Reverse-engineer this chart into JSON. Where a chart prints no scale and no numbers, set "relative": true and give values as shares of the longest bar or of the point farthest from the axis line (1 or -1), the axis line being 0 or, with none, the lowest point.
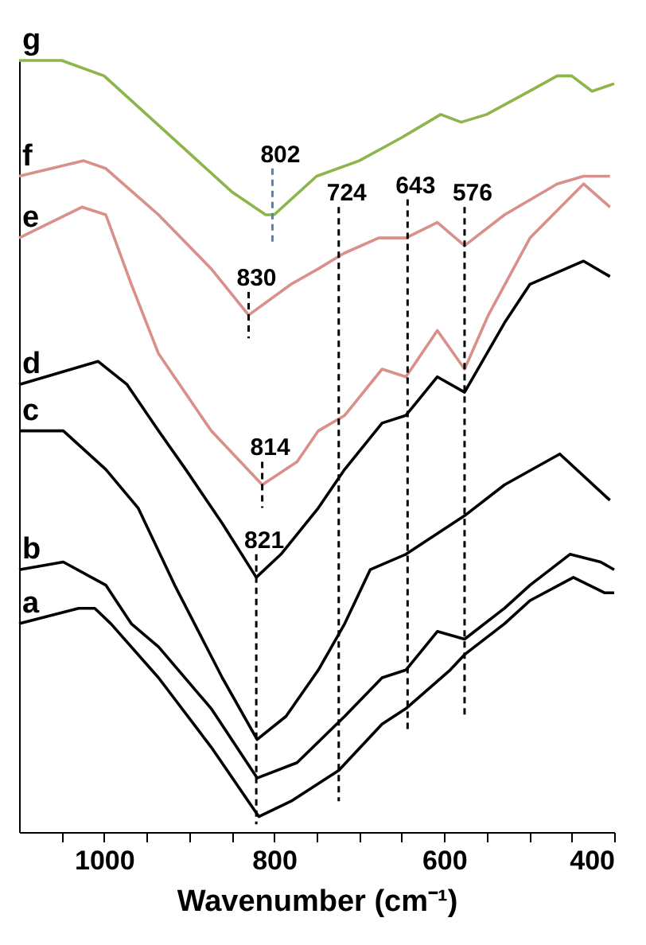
{
  "chart_data": {
    "type": "line",
    "relative": true,
    "xlabel": "Wavenumber (cm⁻¹)",
    "xlim": [
      1100,
      400
    ],
    "xticks": [
      {
        "value": 1050,
        "label": null
      },
      1000,
      {
        "value": 950,
        "label": null
      },
      {
        "value": 900,
        "label": null
      },
      {
        "value": 850,
        "label": null
      },
      800,
      {
        "value": 750,
        "label": null
      },
      {
        "value": 700,
        "label": null
      },
      {
        "value": 650,
        "label": null
      },
      600,
      {
        "value": 550,
        "label": null
      },
      {
        "value": 500,
        "label": null
      },
      {
        "value": 450,
        "label": null
      },
      400
    ],
    "grid": false,
    "line_style": "solid",
    "series": [
      {
        "name": "g",
        "color": "#8db54b",
        "x": [
          1100,
          1050,
          1000,
          950,
          900,
          850,
          810,
          800,
          750,
          700,
          650,
          604,
          580,
          550,
          500,
          467,
          450,
          426,
          400
        ],
        "values": [
          1.0,
          1.0,
          0.98,
          0.93,
          0.88,
          0.83,
          0.8,
          0.8,
          0.85,
          0.87,
          0.9,
          0.93,
          0.92,
          0.93,
          0.96,
          0.98,
          0.98,
          0.96,
          0.97
        ]
      },
      {
        "name": "f",
        "color": "#d98f8a",
        "x": [
          1100,
          1024,
          998,
          936,
          874,
          830,
          780,
          748,
          718,
          677,
          645,
          608,
          576,
          529,
          467,
          436,
          405
        ],
        "values": [
          0.85,
          0.87,
          0.86,
          0.8,
          0.73,
          0.67,
          0.71,
          0.73,
          0.75,
          0.77,
          0.77,
          0.79,
          0.76,
          0.8,
          0.84,
          0.85,
          0.85
        ]
      },
      {
        "name": "e",
        "color": "#d98f8a",
        "x": [
          1100,
          1026,
          998,
          968,
          936,
          874,
          814,
          773,
          748,
          717,
          673,
          645,
          608,
          576,
          548,
          499,
          436,
          405
        ],
        "values": [
          0.77,
          0.81,
          0.8,
          0.71,
          0.62,
          0.52,
          0.45,
          0.48,
          0.52,
          0.54,
          0.6,
          0.59,
          0.65,
          0.6,
          0.67,
          0.77,
          0.84,
          0.81
        ]
      },
      {
        "name": "d",
        "color": "#000000",
        "x": [
          1100,
          1007,
          973,
          936,
          904,
          861,
          821,
          792,
          748,
          717,
          673,
          645,
          608,
          576,
          529,
          499,
          436,
          405
        ],
        "values": [
          0.58,
          0.61,
          0.58,
          0.52,
          0.47,
          0.4,
          0.33,
          0.36,
          0.42,
          0.47,
          0.53,
          0.54,
          0.59,
          0.57,
          0.66,
          0.71,
          0.74,
          0.72
        ]
      },
      {
        "name": "c",
        "color": "#000000",
        "x": [
          1100,
          1048,
          998,
          960,
          917,
          861,
          820,
          786,
          748,
          717,
          687,
          645,
          576,
          529,
          464,
          405
        ],
        "values": [
          0.52,
          0.52,
          0.47,
          0.42,
          0.32,
          0.2,
          0.12,
          0.15,
          0.21,
          0.27,
          0.34,
          0.36,
          0.41,
          0.45,
          0.49,
          0.43
        ]
      },
      {
        "name": "b",
        "color": "#000000",
        "x": [
          1100,
          1048,
          998,
          968,
          936,
          874,
          820,
          773,
          717,
          673,
          645,
          608,
          576,
          529,
          499,
          452,
          416,
          400
        ],
        "values": [
          0.34,
          0.35,
          0.32,
          0.27,
          0.24,
          0.16,
          0.07,
          0.09,
          0.15,
          0.2,
          0.21,
          0.26,
          0.25,
          0.29,
          0.32,
          0.36,
          0.35,
          0.34
        ]
      },
      {
        "name": "a",
        "color": "#000000",
        "x": [
          1100,
          1030,
          1011,
          992,
          936,
          874,
          818,
          780,
          724,
          673,
          645,
          593,
          576,
          529,
          499,
          448,
          411,
          400
        ],
        "values": [
          0.27,
          0.29,
          0.29,
          0.27,
          0.2,
          0.11,
          0.02,
          0.04,
          0.08,
          0.14,
          0.16,
          0.21,
          0.23,
          0.27,
          0.3,
          0.33,
          0.31,
          0.31
        ]
      },
      {
        "color": "#4f81bd",
        "line_style": "dashed",
        "x": [
          802,
          802
        ],
        "values": [
          0.86,
          0.76
        ]
      },
      {
        "color": "#000000",
        "line_style": "dashed",
        "x": [
          830,
          830
        ],
        "values": [
          0.7,
          0.64
        ]
      },
      {
        "color": "#000000",
        "line_style": "dashed",
        "x": [
          814,
          814
        ],
        "values": [
          0.48,
          0.42
        ]
      },
      {
        "color": "#000000",
        "line_style": "dashed",
        "x": [
          821,
          821
        ],
        "values": [
          0.36,
          0.01
        ]
      },
      {
        "color": "#000000",
        "line_style": "dashed",
        "x": [
          724,
          724
        ],
        "values": [
          0.81,
          0.04
        ]
      },
      {
        "color": "#000000",
        "line_style": "dashed",
        "x": [
          643,
          643
        ],
        "values": [
          0.82,
          0.13
        ]
      },
      {
        "color": "#000000",
        "line_style": "dashed",
        "x": [
          576,
          576
        ],
        "values": [
          0.81,
          0.15
        ]
      }
    ],
    "annotations": [
      {
        "text": "802",
        "x": 802,
        "y": 0.86
      },
      {
        "text": "724",
        "x": 724,
        "y": 0.81
      },
      {
        "text": "643",
        "x": 643,
        "y": 0.82
      },
      {
        "text": "576",
        "x": 576,
        "y": 0.81
      },
      {
        "text": "830",
        "x": 830,
        "y": 0.7
      },
      {
        "text": "814",
        "x": 814,
        "y": 0.48
      },
      {
        "text": "821",
        "x": 821,
        "y": 0.36
      }
    ]
  }
}
